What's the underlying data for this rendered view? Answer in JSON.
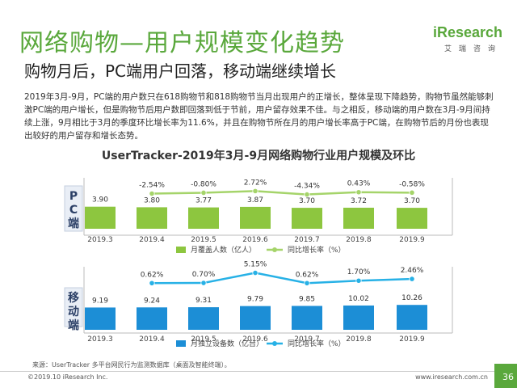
{
  "header": {
    "title": "网络购物—用户规模变化趋势",
    "subtitle": "购物月后，PC端用户回落，移动端继续增长",
    "logo_main": "iResearch",
    "logo_sub": "艾瑞咨询"
  },
  "description": "2019年3月-9月，PC端的用户数只在618购物节和818购物节当月出现用户的正增长，整体呈现下降趋势，购物节虽然能够刺激PC端的用户增长，但是购物节后用户数即回落到低于节前，用户留存效果不佳。与之相反，移动端的用户数在3月-9月间持续上涨，9月相比于3月的季度环比增长率为11.6%，并且在购物节所在月的用户增长率高于PC端，在购物节后的月份也表现出较好的用户留存和增长态势。",
  "chart_title": "UserTracker-2019年3月-9月网络购物行业用户规模及环比",
  "colors": {
    "accent": "#5aa83c",
    "bar_pc": "#8dc63f",
    "bar_mobile": "#1c8ed6",
    "line_pc": "#a5d46a",
    "line_mobile": "#27b1e6",
    "label_box": "#e9eef6"
  },
  "chart_data": [
    {
      "type": "bar",
      "panel_label": "PC端",
      "categories": [
        "2019.3",
        "2019.4",
        "2019.5",
        "2019.6",
        "2019.7",
        "2019.8",
        "2019.9"
      ],
      "series": [
        {
          "name": "月覆盖人数（亿人）",
          "type": "bar",
          "values": [
            3.9,
            3.8,
            3.77,
            3.87,
            3.7,
            3.72,
            3.7
          ],
          "labels": [
            "3.90",
            "3.80",
            "3.77",
            "3.87",
            "3.70",
            "3.72",
            "3.70"
          ]
        },
        {
          "name": "同比增长率（%）",
          "type": "line",
          "values": [
            null,
            -2.54,
            -0.8,
            2.72,
            -4.34,
            0.43,
            -0.58
          ],
          "labels": [
            "",
            "-2.54%",
            "-0.80%",
            "2.72%",
            "-4.34%",
            "0.43%",
            "-0.58%"
          ]
        }
      ]
    },
    {
      "type": "bar",
      "panel_label": "移动端",
      "categories": [
        "2019.3",
        "2019.4",
        "2019.5",
        "2019.6",
        "2019.7",
        "2019.8",
        "2019.9"
      ],
      "series": [
        {
          "name": "月独立设备数（亿台）",
          "type": "bar",
          "values": [
            9.19,
            9.24,
            9.31,
            9.79,
            9.85,
            10.02,
            10.26
          ],
          "labels": [
            "9.19",
            "9.24",
            "9.31",
            "9.79",
            "9.85",
            "10.02",
            "10.26"
          ]
        },
        {
          "name": "同比增长率（%）",
          "type": "line",
          "values": [
            null,
            0.62,
            0.7,
            5.15,
            0.62,
            1.7,
            2.46
          ],
          "labels": [
            "",
            "0.62%",
            "0.70%",
            "5.15%",
            "0.62%",
            "1.70%",
            "2.46%"
          ]
        }
      ]
    }
  ],
  "footer": {
    "source": "来源：UserTracker 多平台网民行为监测数据库（桌面及智能终端）。",
    "copyright": "©2019.10 iResearch Inc.",
    "website": "www.iresearch.com.cn",
    "page": "36"
  }
}
